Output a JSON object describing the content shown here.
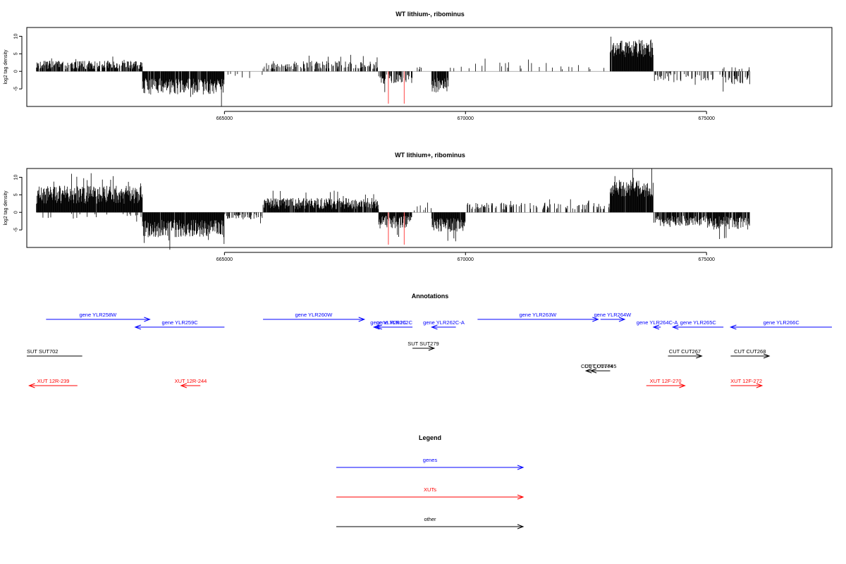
{
  "chart_data": [
    {
      "type": "bar",
      "title": "WT lithium-, ribominus",
      "xlabel": "",
      "ylabel": "log2 tag density",
      "xlim": [
        660900,
        677600
      ],
      "ylim": [
        -10,
        12.5
      ],
      "xticks": [
        665000,
        670000,
        675000
      ],
      "xtick_labels": [
        "665000",
        "670000",
        "675000"
      ],
      "yticks": [
        -5,
        0,
        5,
        10
      ],
      "ytick_labels": [
        "-5",
        "0",
        "5",
        "10"
      ],
      "grid": false,
      "series": [
        {
          "color": "#000000",
          "segments": [
            {
              "from": 661100,
              "to": 663300,
              "sign": 1,
              "mean": 1.8,
              "amp": 1.2,
              "density": 0.75
            },
            {
              "from": 663300,
              "to": 665000,
              "sign": -1,
              "mean": 4.3,
              "amp": 2.3,
              "density": 0.97
            },
            {
              "from": 665000,
              "to": 665800,
              "sign": -1,
              "mean": 1.2,
              "amp": 0.8,
              "density": 0.05
            },
            {
              "from": 665800,
              "to": 668200,
              "sign": 1,
              "mean": 1.8,
              "amp": 1.2,
              "density": 0.45
            },
            {
              "from": 668200,
              "to": 668900,
              "sign": -1,
              "mean": 2.2,
              "amp": 1.6,
              "density": 0.55
            },
            {
              "from": 668900,
              "to": 669300,
              "sign": 1,
              "mean": 0.8,
              "amp": 0.6,
              "density": 0.08
            },
            {
              "from": 669300,
              "to": 669650,
              "sign": -1,
              "mean": 4.0,
              "amp": 2.2,
              "density": 0.85
            },
            {
              "from": 669650,
              "to": 673000,
              "sign": 1,
              "mean": 1.6,
              "amp": 1.0,
              "density": 0.08
            },
            {
              "from": 673000,
              "to": 673900,
              "sign": 1,
              "mean": 6.5,
              "amp": 2.5,
              "density": 0.98
            },
            {
              "from": 673900,
              "to": 675300,
              "sign": -1,
              "mean": 1.7,
              "amp": 1.2,
              "density": 0.22
            },
            {
              "from": 675300,
              "to": 675900,
              "sign": 1,
              "mean": 0.8,
              "amp": 0.5,
              "density": 0.1
            },
            {
              "from": 675300,
              "to": 675900,
              "sign": -1,
              "mean": 2.4,
              "amp": 1.6,
              "density": 0.5
            }
          ]
        },
        {
          "color": "#ff6b6b",
          "bars": [
            {
              "x": 668400,
              "y": -9.2
            },
            {
              "x": 668730,
              "y": -9.2
            }
          ]
        }
      ]
    },
    {
      "type": "bar",
      "title": "WT lithium+, ribominus",
      "xlabel": "",
      "ylabel": "log2 tag density",
      "xlim": [
        660900,
        677600
      ],
      "ylim": [
        -10,
        12.5
      ],
      "xticks": [
        665000,
        670000,
        675000
      ],
      "xtick_labels": [
        "665000",
        "670000",
        "675000"
      ],
      "yticks": [
        -5,
        0,
        5,
        10
      ],
      "ytick_labels": [
        "-5",
        "0",
        "5",
        "10"
      ],
      "grid": false,
      "series": [
        {
          "color": "#000000",
          "segments": [
            {
              "from": 661100,
              "to": 663300,
              "sign": 1,
              "mean": 5.0,
              "amp": 2.6,
              "density": 0.99
            },
            {
              "from": 661100,
              "to": 663300,
              "sign": -1,
              "mean": 1.0,
              "amp": 0.8,
              "density": 0.08
            },
            {
              "from": 663300,
              "to": 665000,
              "sign": -1,
              "mean": 4.6,
              "amp": 2.5,
              "density": 0.99
            },
            {
              "from": 665000,
              "to": 665800,
              "sign": -1,
              "mean": 1.2,
              "amp": 0.8,
              "density": 0.4
            },
            {
              "from": 665800,
              "to": 668200,
              "sign": 1,
              "mean": 2.5,
              "amp": 1.6,
              "density": 0.92
            },
            {
              "from": 668200,
              "to": 668900,
              "sign": -1,
              "mean": 2.8,
              "amp": 1.8,
              "density": 0.92
            },
            {
              "from": 668900,
              "to": 669300,
              "sign": 1,
              "mean": 1.2,
              "amp": 0.8,
              "density": 0.2
            },
            {
              "from": 669300,
              "to": 670000,
              "sign": -1,
              "mean": 3.6,
              "amp": 2.0,
              "density": 0.95
            },
            {
              "from": 670000,
              "to": 673000,
              "sign": 1,
              "mean": 1.8,
              "amp": 1.0,
              "density": 0.3
            },
            {
              "from": 673000,
              "to": 673900,
              "sign": 1,
              "mean": 6.8,
              "amp": 2.5,
              "density": 0.99
            },
            {
              "from": 673900,
              "to": 675000,
              "sign": -1,
              "mean": 2.5,
              "amp": 1.5,
              "density": 0.75
            },
            {
              "from": 675000,
              "to": 675900,
              "sign": -1,
              "mean": 3.0,
              "amp": 1.9,
              "density": 0.9
            }
          ]
        },
        {
          "color": "#ff6b6b",
          "bars": [
            {
              "x": 668400,
              "y": -9.2
            },
            {
              "x": 668730,
              "y": -9.2
            }
          ]
        }
      ]
    }
  ],
  "annotations": {
    "title": "Annotations",
    "features": [
      {
        "label": "gene YLR258W",
        "class": "gene",
        "start": 661300,
        "end": 663450,
        "strand": "+",
        "row": 0
      },
      {
        "label": "gene YLR259C",
        "class": "gene",
        "start": 663150,
        "end": 665000,
        "strand": "-",
        "row": 1
      },
      {
        "label": "gene YLR260W",
        "class": "gene",
        "start": 665800,
        "end": 667900,
        "strand": "+",
        "row": 0
      },
      {
        "label": "gene YLR261C",
        "class": "gene",
        "start": 668100,
        "end": 668700,
        "strand": "-",
        "row": 1
      },
      {
        "label": "gene YLR262C",
        "class": "gene",
        "start": 668150,
        "end": 668900,
        "strand": "-",
        "row": 1
      },
      {
        "label": "gene YLR262C-A",
        "class": "gene",
        "start": 669300,
        "end": 669800,
        "strand": "-",
        "row": 1
      },
      {
        "label": "gene YLR263W",
        "class": "gene",
        "start": 670250,
        "end": 672750,
        "strand": "+",
        "row": 0
      },
      {
        "label": "gene YLR264W",
        "class": "gene",
        "start": 672800,
        "end": 673300,
        "strand": "+",
        "row": 0
      },
      {
        "label": "gene YLR264C-A",
        "class": "gene",
        "start": 673900,
        "end": 674050,
        "strand": "-",
        "row": 1
      },
      {
        "label": "gene YLR265C",
        "class": "gene",
        "start": 674300,
        "end": 675350,
        "strand": "-",
        "row": 1
      },
      {
        "label": "gene YLR266C",
        "class": "gene",
        "start": 675500,
        "end": 677600,
        "strand": "-",
        "row": 1
      },
      {
        "label": "SUT SUT702",
        "class": "other",
        "start": 660900,
        "end": 662050,
        "strand": "none",
        "row": 3
      },
      {
        "label": "SUT SUT279",
        "class": "other",
        "start": 668900,
        "end": 669350,
        "strand": "+",
        "row": 2
      },
      {
        "label": "CUT CUT744",
        "class": "other",
        "start": 672500,
        "end": 672950,
        "strand": "-",
        "row": 4
      },
      {
        "label": "CUT CUT745",
        "class": "other",
        "start": 672600,
        "end": 673000,
        "strand": "-",
        "row": 4
      },
      {
        "label": "CUT CUT267",
        "class": "other",
        "start": 674200,
        "end": 674900,
        "strand": "+",
        "row": 3
      },
      {
        "label": "CUT CUT268",
        "class": "other",
        "start": 675500,
        "end": 676300,
        "strand": "+",
        "row": 3
      },
      {
        "label": "XUT 12R-239",
        "class": "xut",
        "start": 660950,
        "end": 661950,
        "strand": "-",
        "row": 5
      },
      {
        "label": "XUT 12R-244",
        "class": "xut",
        "start": 664100,
        "end": 664500,
        "strand": "-",
        "row": 5
      },
      {
        "label": "XUT 12F-270",
        "class": "xut",
        "start": 673750,
        "end": 674550,
        "strand": "+",
        "row": 5
      },
      {
        "label": "XUT 12F-272",
        "class": "xut",
        "start": 675500,
        "end": 676150,
        "strand": "+",
        "row": 5
      }
    ]
  },
  "legend": {
    "title": "Legend",
    "items": [
      {
        "label": "genes",
        "color": "#0000ff"
      },
      {
        "label": "XUTs",
        "color": "#ff0000"
      },
      {
        "label": "other",
        "color": "#000000"
      }
    ]
  },
  "colors": {
    "gene": "#0000ff",
    "xut": "#ff0000",
    "other": "#000000"
  }
}
